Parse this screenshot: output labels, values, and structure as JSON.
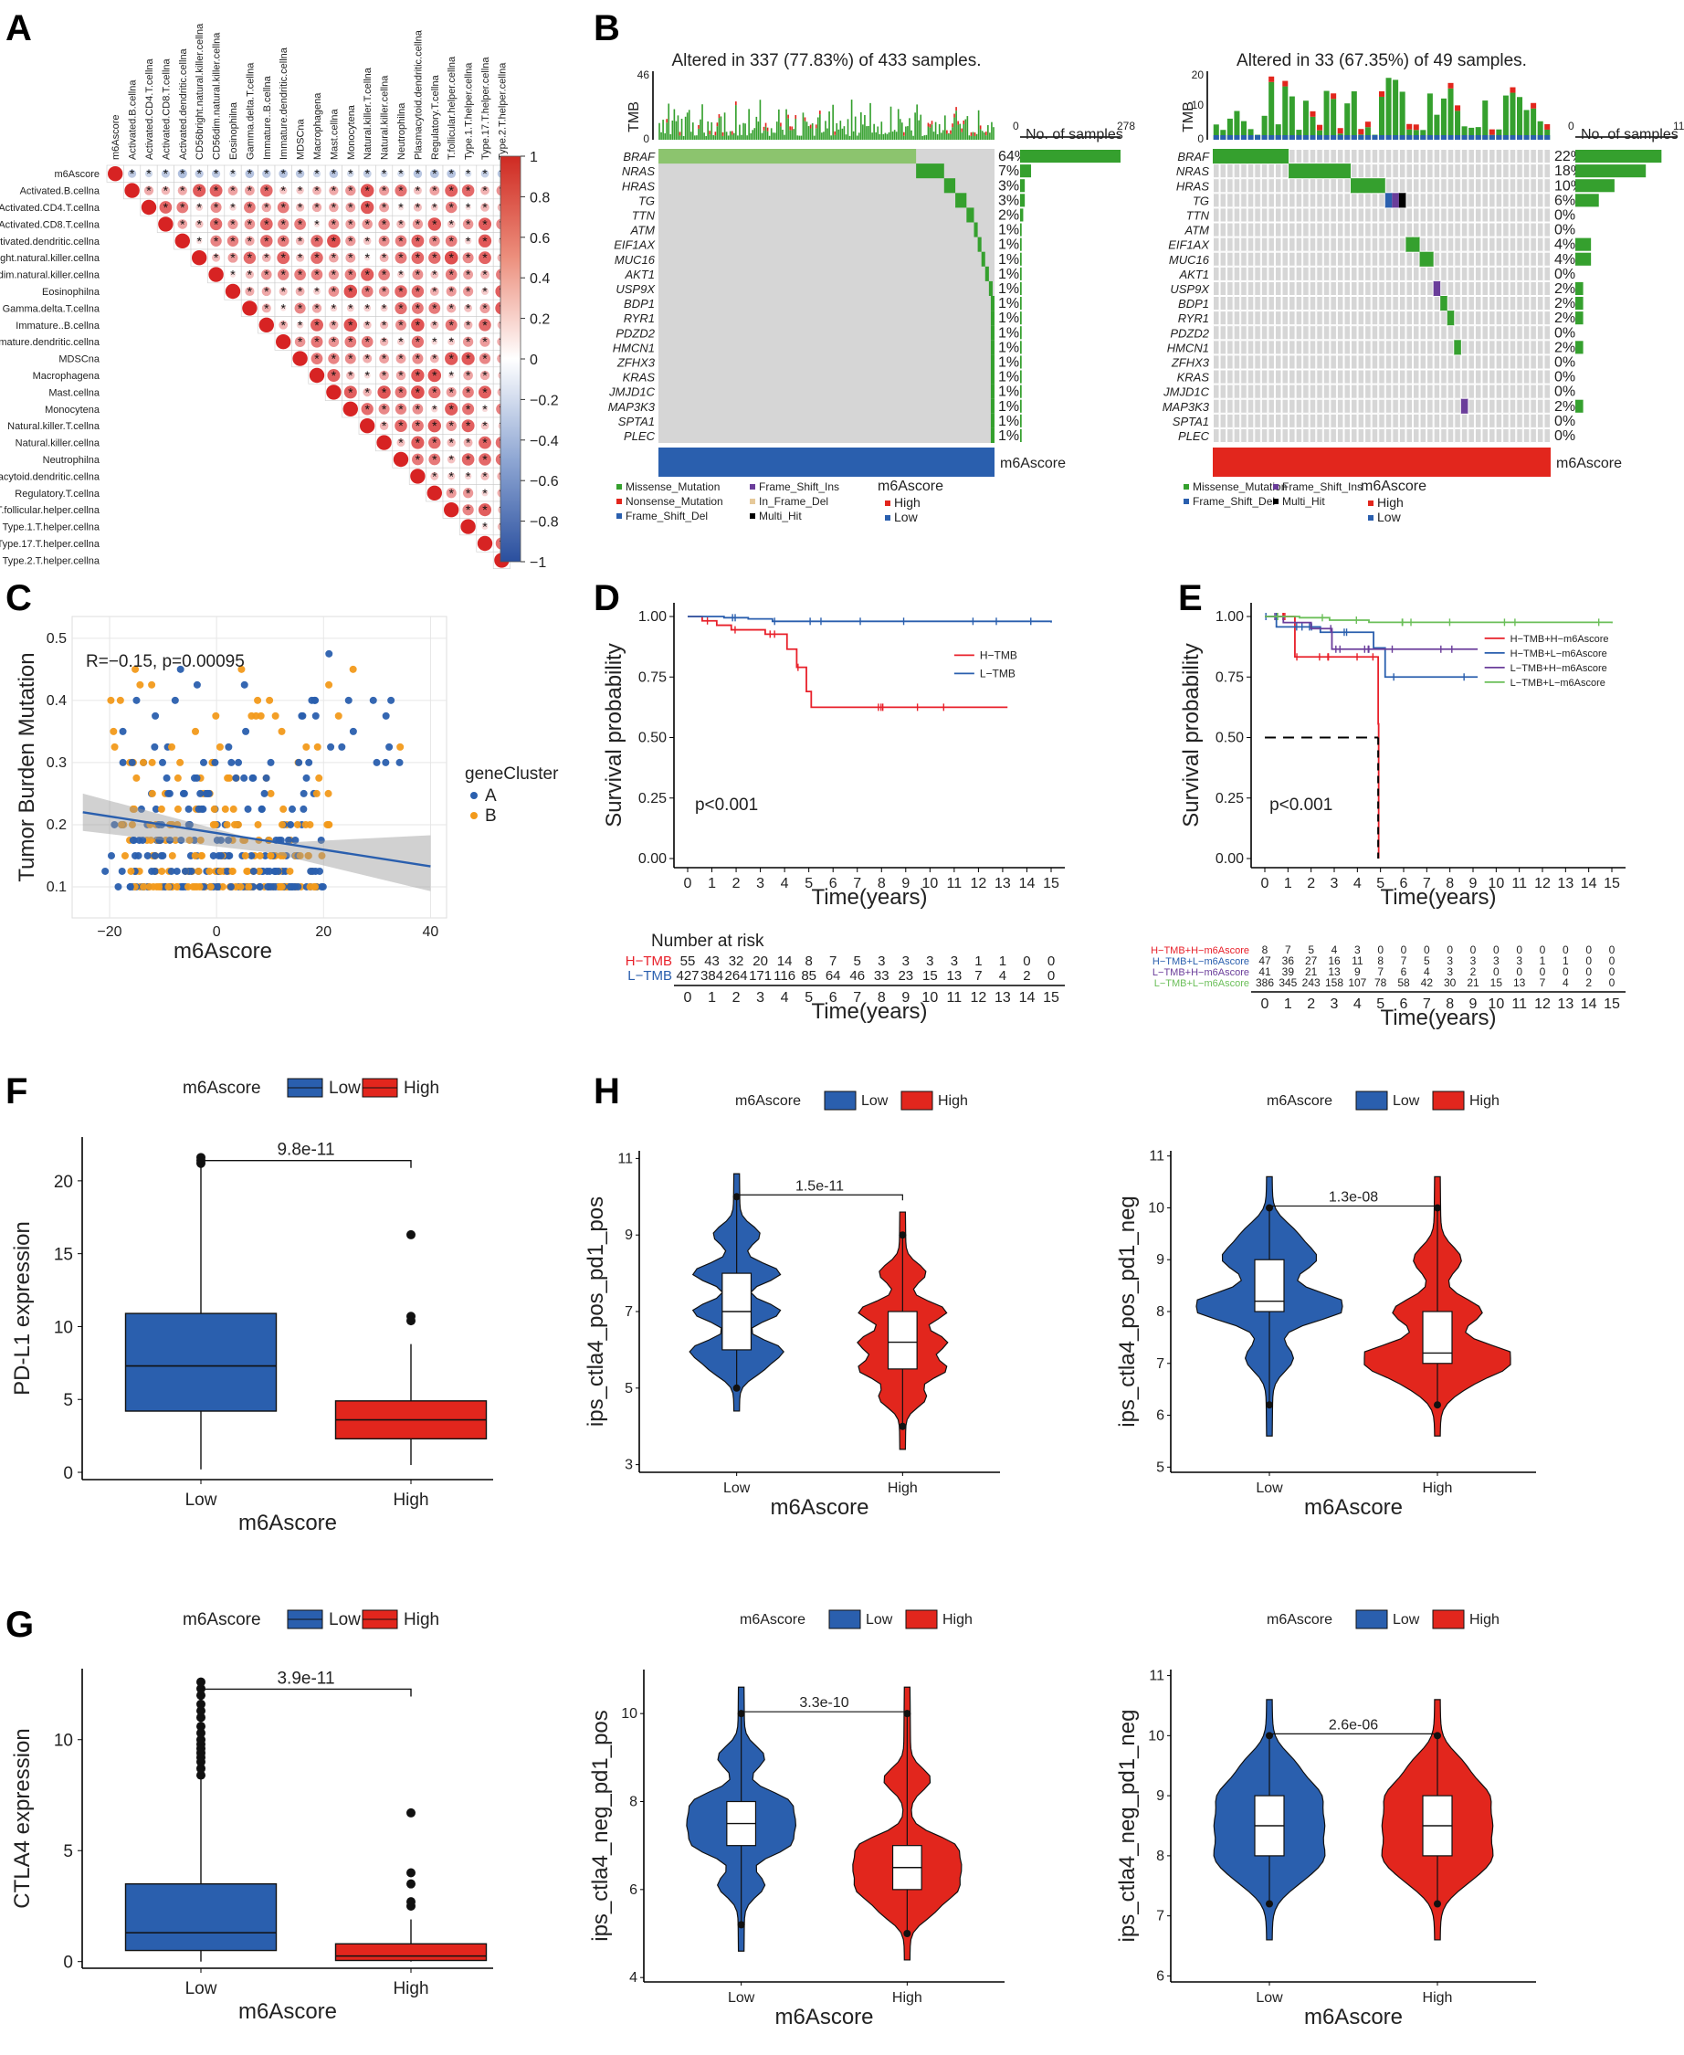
{
  "panel_labels": [
    "A",
    "B",
    "C",
    "D",
    "E",
    "F",
    "G",
    "H"
  ],
  "colors": {
    "low_blue": "#2a5fae",
    "high_red": "#e2261d",
    "ptmb_red": "#e8202a",
    "green": "#35a02e",
    "orange": "#f29a1b",
    "grey": "#d6d6d6",
    "lightgreen": "#6bbf59",
    "purple": "#6a3d9a"
  },
  "chart_data": [
    {
      "panel": "A",
      "type": "heatmap",
      "variables": [
        "m6Ascore",
        "Activated.B.cellna",
        "Activated.CD4.T.cellna",
        "Activated.CD8.T.cellna",
        "Activated.dendritic.cellna",
        "CD56bright.natural.killer.cellna",
        "CD56dim.natural.killer.cellna",
        "Eosinophilna",
        "Gamma.delta.T.cellna",
        "Immature..B.cellna",
        "Immature.dendritic.cellna",
        "MDSCna",
        "Macrophagena",
        "Mast.cellna",
        "Monocytena",
        "Natural.killer.T.cellna",
        "Natural.killer.cellna",
        "Neutrophilna",
        "Plasmacytoid.dendritic.cellna",
        "Regulatory.T.cellna",
        "T.follicular.helper.cellna",
        "Type.1.T.helper.cellna",
        "Type.17.T.helper.cellna",
        "Type.2.T.helper.cellna"
      ],
      "first_row_signs": [
        "",
        "*",
        "*",
        "*",
        "*",
        "*",
        "*",
        "*",
        "*",
        "*",
        "*",
        "*",
        "*",
        "*",
        "*",
        "*",
        "*",
        "*",
        "*",
        "*",
        "*",
        "*",
        "*",
        "*"
      ],
      "colorbar_ticks": [
        "1",
        "0.8",
        "0.6",
        "0.4",
        "0.2",
        "0",
        "−0.2",
        "−0.4",
        "−0.6",
        "−0.8",
        "−1"
      ],
      "mark": "*"
    },
    {
      "panel": "B-left",
      "type": "oncoplot",
      "title": "Altered in 337 (77.83%) of 433 samples.",
      "tmb_label": "TMB",
      "tmb_max": "46",
      "tmb_min": "0",
      "samples_label": "No. of samples",
      "samples_min": "0",
      "samples_max": "278",
      "genes": [
        "BRAF",
        "NRAS",
        "HRAS",
        "TG",
        "TTN",
        "ATM",
        "EIF1AX",
        "MUC16",
        "AKT1",
        "USP9X",
        "BDP1",
        "RYR1",
        "PDZD2",
        "HMCN1",
        "ZFHX3",
        "KRAS",
        "JMJD1C",
        "MAP3K3",
        "SPTA1",
        "PLEC"
      ],
      "percent": [
        "64%",
        "7%",
        "3%",
        "3%",
        "2%",
        "1%",
        "1%",
        "1%",
        "1%",
        "1%",
        "1%",
        "1%",
        "1%",
        "1%",
        "1%",
        "1%",
        "1%",
        "1%",
        "1%",
        "1%"
      ],
      "percent_values": [
        64,
        7,
        3,
        3,
        2,
        1,
        1,
        1,
        1,
        1,
        1,
        1,
        1,
        1,
        1,
        1,
        1,
        1,
        1,
        1
      ],
      "annotation_label": "m6Ascore",
      "legend": [
        "Missense_Mutation",
        "Nonsense_Mutation",
        "Frame_Shift_Del",
        "Frame_Shift_Ins",
        "In_Frame_Del",
        "Multi_Hit"
      ],
      "score_legend": [
        "High",
        "Low"
      ]
    },
    {
      "panel": "B-right",
      "type": "oncoplot",
      "title": "Altered in 33 (67.35%) of 49 samples.",
      "tmb_label": "TMB",
      "tmb_max": "20",
      "tmb_mid": "10",
      "tmb_min": "0",
      "samples_label": "No. of samples",
      "samples_min": "0",
      "samples_max": "11",
      "genes": [
        "BRAF",
        "NRAS",
        "HRAS",
        "TG",
        "TTN",
        "ATM",
        "EIF1AX",
        "MUC16",
        "AKT1",
        "USP9X",
        "BDP1",
        "RYR1",
        "PDZD2",
        "HMCN1",
        "ZFHX3",
        "KRAS",
        "JMJD1C",
        "MAP3K3",
        "SPTA1",
        "PLEC"
      ],
      "percent": [
        "22%",
        "18%",
        "10%",
        "6%",
        "0%",
        "0%",
        "4%",
        "4%",
        "0%",
        "2%",
        "2%",
        "2%",
        "0%",
        "2%",
        "0%",
        "0%",
        "0%",
        "2%",
        "0%",
        "0%"
      ],
      "percent_values": [
        22,
        18,
        10,
        6,
        0,
        0,
        4,
        4,
        0,
        2,
        2,
        2,
        0,
        2,
        0,
        0,
        0,
        2,
        0,
        0
      ],
      "annotation_label": "m6Ascore",
      "legend": [
        "Missense_Mutation",
        "Frame_Shift_Del",
        "Frame_Shift_Ins",
        "Multi_Hit"
      ],
      "score_legend": [
        "High",
        "Low"
      ]
    },
    {
      "panel": "C",
      "type": "scatter",
      "annotation": "R=−0.15, p=0.00095",
      "xlabel": "m6Ascore",
      "ylabel": "Tumor Burden Mutation",
      "xticks": [
        "−20",
        "0",
        "20",
        "40"
      ],
      "yticks": [
        "0.1",
        "0.2",
        "0.3",
        "0.4",
        "0.5"
      ],
      "xlim": [
        -27,
        43
      ],
      "ylim": [
        0.05,
        0.535
      ],
      "legend_title": "geneCluster",
      "series": [
        {
          "name": "A"
        },
        {
          "name": "B"
        }
      ],
      "trend": {
        "x": [
          -25,
          40
        ],
        "y": [
          0.22,
          0.133
        ]
      }
    },
    {
      "panel": "D",
      "type": "line",
      "xlabel": "Time(years)",
      "ylabel": "Survival probability",
      "pvalue": "p<0.001",
      "xticks": [
        "0",
        "1",
        "2",
        "3",
        "4",
        "5",
        "6",
        "7",
        "8",
        "9",
        "10",
        "11",
        "12",
        "13",
        "14",
        "15"
      ],
      "yticks": [
        "0.00",
        "0.25",
        "0.50",
        "0.75",
        "1.00"
      ],
      "series": [
        {
          "name": "H−TMB",
          "x": [
            0,
            0.6,
            1.2,
            1.8,
            3.2,
            4.1,
            4.5,
            4.9,
            5.1,
            13.2
          ],
          "y": [
            1,
            0.982,
            0.964,
            0.945,
            0.927,
            0.865,
            0.79,
            0.69,
            0.625,
            0.625
          ]
        },
        {
          "name": "L−TMB",
          "x": [
            0,
            1.5,
            2.5,
            3.5,
            15
          ],
          "y": [
            1,
            0.995,
            0.99,
            0.98,
            0.975
          ]
        }
      ],
      "risk_title": "Number at risk",
      "risk_rows": [
        {
          "name": "H−TMB",
          "values": [
            "55",
            "43",
            "32",
            "20",
            "14",
            "8",
            "7",
            "5",
            "3",
            "3",
            "3",
            "3",
            "1",
            "1",
            "0",
            "0"
          ]
        },
        {
          "name": "L−TMB",
          "values": [
            "427",
            "384",
            "264",
            "171",
            "116",
            "85",
            "64",
            "46",
            "33",
            "23",
            "15",
            "13",
            "7",
            "4",
            "2",
            "0"
          ]
        }
      ]
    },
    {
      "panel": "E",
      "type": "line",
      "xlabel": "Time(years)",
      "ylabel": "Survival probability",
      "pvalue": "p<0.001",
      "xticks": [
        "0",
        "1",
        "2",
        "3",
        "4",
        "5",
        "6",
        "7",
        "8",
        "9",
        "10",
        "11",
        "12",
        "13",
        "14",
        "15"
      ],
      "yticks": [
        "0.00",
        "0.25",
        "0.50",
        "0.75",
        "1.00"
      ],
      "series": [
        {
          "name": "H−TMB+H−m6Ascore",
          "x": [
            0,
            1.3,
            4.3,
            4.9,
            4.92
          ],
          "y": [
            1,
            0.833,
            0.833,
            0.556,
            0
          ]
        },
        {
          "name": "H−TMB+L−m6Ascore",
          "x": [
            0,
            0.5,
            2.4,
            4.7,
            5.2,
            9.2
          ],
          "y": [
            1,
            0.957,
            0.935,
            0.87,
            0.75,
            0.75
          ]
        },
        {
          "name": "L−TMB+H−m6Ascore",
          "x": [
            0,
            0.8,
            2,
            2.9,
            9.2
          ],
          "y": [
            1,
            0.975,
            0.95,
            0.865,
            0.865
          ]
        },
        {
          "name": "L−TMB+L−m6Ascore",
          "x": [
            0,
            1.5,
            2.8,
            4.5,
            15
          ],
          "y": [
            1,
            0.995,
            0.985,
            0.976,
            0.972
          ]
        }
      ],
      "risk_rows": [
        {
          "name": "H−TMB+H−m6Ascore",
          "values": [
            "8",
            "7",
            "5",
            "4",
            "3",
            "0",
            "0",
            "0",
            "0",
            "0",
            "0",
            "0",
            "0",
            "0",
            "0",
            "0"
          ]
        },
        {
          "name": "H−TMB+L−m6Ascore",
          "values": [
            "47",
            "36",
            "27",
            "16",
            "11",
            "8",
            "7",
            "5",
            "3",
            "3",
            "3",
            "3",
            "1",
            "1",
            "0",
            "0"
          ]
        },
        {
          "name": "L−TMB+H−m6Ascore",
          "values": [
            "41",
            "39",
            "21",
            "13",
            "9",
            "7",
            "6",
            "4",
            "3",
            "2",
            "0",
            "0",
            "0",
            "0",
            "0",
            "0"
          ]
        },
        {
          "name": "L−TMB+L−m6Ascore",
          "values": [
            "386",
            "345",
            "243",
            "158",
            "107",
            "78",
            "58",
            "42",
            "30",
            "21",
            "15",
            "13",
            "7",
            "4",
            "2",
            "0"
          ]
        }
      ]
    },
    {
      "panel": "F",
      "type": "box",
      "legend_title": "m6Ascore",
      "categories": [
        "Low",
        "High"
      ],
      "xlabel": "m6Ascore",
      "ylabel": "PD-L1 expression",
      "yticks": [
        "0",
        "5",
        "10",
        "15",
        "20"
      ],
      "ylim": [
        -0.5,
        23
      ],
      "pvalue": "9.8e-11",
      "boxes": [
        {
          "min": 0.2,
          "q1": 4.2,
          "median": 7.3,
          "q3": 10.9,
          "max": 21.0,
          "outliers": [
            21.2,
            21.4,
            21.6
          ]
        },
        {
          "min": 0.5,
          "q1": 2.3,
          "median": 3.6,
          "q3": 4.9,
          "max": 8.8,
          "outliers": [
            10.4,
            10.7,
            16.3
          ]
        }
      ]
    },
    {
      "panel": "G",
      "type": "box",
      "legend_title": "m6Ascore",
      "categories": [
        "Low",
        "High"
      ],
      "xlabel": "m6Ascore",
      "ylabel": "CTLA4 expression",
      "yticks": [
        "0",
        "5",
        "10"
      ],
      "ylim": [
        -0.3,
        13.2
      ],
      "pvalue": "3.9e-11",
      "boxes": [
        {
          "min": 0,
          "q1": 0.5,
          "median": 1.3,
          "q3": 3.5,
          "max": 8.2,
          "outliers": [
            8.4,
            8.7,
            9.0,
            9.2,
            9.4,
            9.6,
            9.8,
            10.0,
            10.3,
            10.6,
            11.0,
            11.3,
            11.6,
            12.0,
            12.3,
            12.6
          ]
        },
        {
          "min": 0,
          "q1": 0.05,
          "median": 0.25,
          "q3": 0.8,
          "max": 1.9,
          "outliers": [
            2.5,
            2.7,
            3.5,
            4.0,
            6.7
          ]
        }
      ]
    },
    {
      "panel": "H1",
      "type": "violin",
      "legend_title": "m6Ascore",
      "categories": [
        "Low",
        "High"
      ],
      "xlabel": "m6Ascore",
      "ylabel": "ips_ctla4_pos_pd1_pos",
      "yticks": [
        "3",
        "5",
        "7",
        "9",
        "11"
      ],
      "ylim": [
        2.8,
        11.2
      ],
      "pvalue": "1.5e-11",
      "boxes": [
        {
          "lo": 5,
          "q1": 6,
          "median": 7,
          "q3": 8,
          "hi": 10
        },
        {
          "lo": 4,
          "q1": 5.5,
          "median": 6.2,
          "q3": 7,
          "hi": 9
        }
      ]
    },
    {
      "panel": "H2",
      "type": "violin",
      "legend_title": "m6Ascore",
      "categories": [
        "Low",
        "High"
      ],
      "xlabel": "m6Ascore",
      "ylabel": "ips_ctla4_pos_pd1_neg",
      "yticks": [
        "5",
        "6",
        "7",
        "8",
        "9",
        "10",
        "11"
      ],
      "ylim": [
        4.9,
        11.1
      ],
      "pvalue": "1.3e-08",
      "boxes": [
        {
          "lo": 6.2,
          "q1": 8,
          "median": 8.2,
          "q3": 9,
          "hi": 10
        },
        {
          "lo": 6.2,
          "q1": 7,
          "median": 7.2,
          "q3": 8,
          "hi": 10
        }
      ]
    },
    {
      "panel": "H3",
      "type": "violin",
      "legend_title": "m6Ascore",
      "categories": [
        "Low",
        "High"
      ],
      "xlabel": "m6Ascore",
      "ylabel": "ips_ctla4_neg_pd1_pos",
      "yticks": [
        "4",
        "6",
        "8",
        "10"
      ],
      "ylim": [
        3.9,
        11.0
      ],
      "pvalue": "3.3e-10",
      "boxes": [
        {
          "lo": 5.2,
          "q1": 7,
          "median": 7.5,
          "q3": 8,
          "hi": 10
        },
        {
          "lo": 5,
          "q1": 6,
          "median": 6.5,
          "q3": 7,
          "hi": 10
        }
      ]
    },
    {
      "panel": "H4",
      "type": "violin",
      "legend_title": "m6Ascore",
      "categories": [
        "Low",
        "High"
      ],
      "xlabel": "m6Ascore",
      "ylabel": "ips_ctla4_neg_pd1_neg",
      "yticks": [
        "6",
        "7",
        "8",
        "9",
        "10",
        "11"
      ],
      "ylim": [
        5.9,
        11.1
      ],
      "pvalue": "2.6e-06",
      "boxes": [
        {
          "lo": 7.2,
          "q1": 8,
          "median": 8.5,
          "q3": 9,
          "hi": 10
        },
        {
          "lo": 7.2,
          "q1": 8,
          "median": 8.5,
          "q3": 9,
          "hi": 10
        }
      ]
    }
  ]
}
